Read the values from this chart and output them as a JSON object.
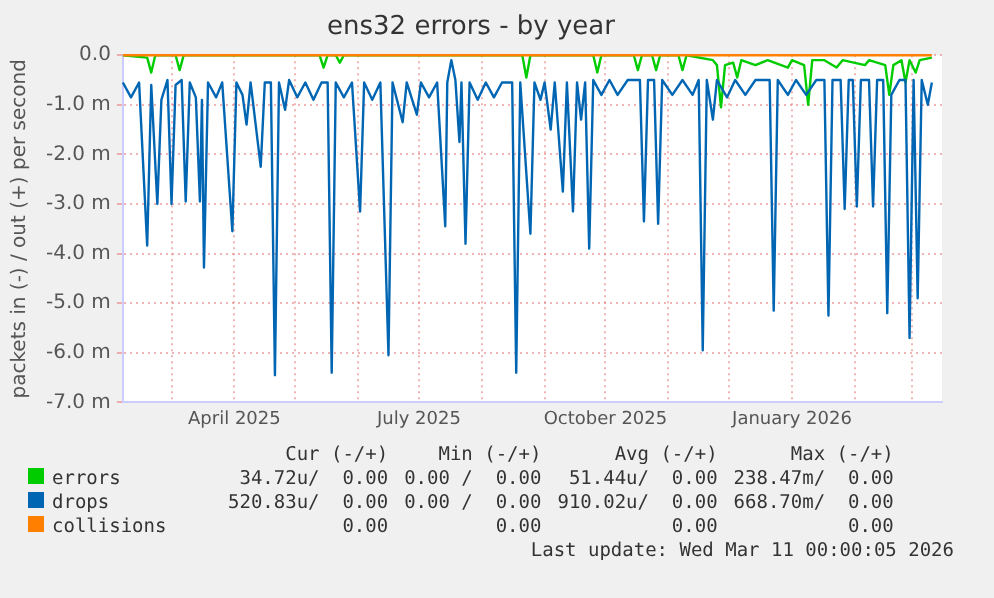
{
  "chart_data": {
    "type": "line",
    "title": "ens32 errors - by year",
    "ylabel": "packets in (-) / out (+) per second",
    "xlim": [
      "2025-02-05",
      "2026-03-16"
    ],
    "ylim": [
      -7,
      0
    ],
    "xticks": [
      {
        "value": "2025-03-01",
        "label": null
      },
      {
        "value": "2025-04-01",
        "label": "April 2025"
      },
      {
        "value": "2025-05-01",
        "label": null
      },
      {
        "value": "2025-06-01",
        "label": null
      },
      {
        "value": "2025-07-01",
        "label": "July 2025"
      },
      {
        "value": "2025-08-01",
        "label": null
      },
      {
        "value": "2025-09-01",
        "label": null
      },
      {
        "value": "2025-10-01",
        "label": "October 2025"
      },
      {
        "value": "2025-11-01",
        "label": null
      },
      {
        "value": "2025-12-01",
        "label": null
      },
      {
        "value": "2026-01-01",
        "label": "January 2026"
      },
      {
        "value": "2026-02-01",
        "label": null
      },
      {
        "value": "2026-03-01",
        "label": null
      }
    ],
    "yticks": [
      {
        "value": 0,
        "label": "0.0"
      },
      {
        "value": -1,
        "label": "-1.0 m"
      },
      {
        "value": -2,
        "label": "-2.0 m"
      },
      {
        "value": -3,
        "label": "-3.0 m"
      },
      {
        "value": -4,
        "label": "-4.0 m"
      },
      {
        "value": -5,
        "label": "-5.0 m"
      },
      {
        "value": -6,
        "label": "-6.0 m"
      },
      {
        "value": -7,
        "label": "-7.0 m"
      }
    ],
    "grid": true,
    "legend": "bottom",
    "marker": "none",
    "line_style": "solid",
    "series": [
      {
        "name": "errors",
        "color": "#00cc00",
        "x": [
          "2025-02-05",
          "2025-02-17",
          "2025-02-19",
          "2025-02-21",
          "2025-03-03",
          "2025-03-05",
          "2025-03-07",
          "2025-05-13",
          "2025-05-15",
          "2025-05-17",
          "2025-05-21",
          "2025-05-23",
          "2025-05-25",
          "2025-08-21",
          "2025-08-23",
          "2025-08-25",
          "2025-09-25",
          "2025-09-27",
          "2025-09-29",
          "2025-10-15",
          "2025-10-17",
          "2025-10-19",
          "2025-10-24",
          "2025-10-26",
          "2025-10-28",
          "2025-11-06",
          "2025-11-08",
          "2025-11-10",
          "2025-11-23",
          "2025-11-25",
          "2025-11-27",
          "2025-11-29",
          "2025-12-03",
          "2025-12-05",
          "2025-12-07",
          "2025-12-14",
          "2025-12-20",
          "2025-12-30",
          "2026-01-01",
          "2026-01-07",
          "2026-01-09",
          "2026-01-11",
          "2026-01-17",
          "2026-01-23",
          "2026-01-26",
          "2026-02-06",
          "2026-02-08",
          "2026-02-16",
          "2026-02-18",
          "2026-02-20",
          "2026-02-24",
          "2026-02-26",
          "2026-02-28",
          "2026-03-03",
          "2026-03-05",
          "2026-03-11"
        ],
        "values": [
          0,
          -0.05,
          -0.35,
          0,
          0,
          -0.3,
          0,
          0,
          -0.25,
          0,
          0,
          -0.15,
          0,
          0,
          -0.45,
          0,
          0,
          -0.35,
          0,
          0,
          -0.3,
          0,
          0,
          -0.3,
          0,
          0,
          -0.3,
          0,
          -0.1,
          -0.2,
          -1.05,
          -0.2,
          -0.15,
          -0.45,
          -0.1,
          -0.2,
          -0.1,
          -0.25,
          -0.1,
          -0.2,
          -1.0,
          -0.1,
          -0.1,
          -0.25,
          -0.1,
          -0.2,
          -0.1,
          -0.2,
          -0.8,
          -0.2,
          -0.1,
          -0.55,
          -0.1,
          -0.35,
          -0.1,
          -0.05
        ]
      },
      {
        "name": "drops",
        "color": "#0066b3",
        "x": [
          "2025-02-05",
          "2025-02-09",
          "2025-02-13",
          "2025-02-17",
          "2025-02-19",
          "2025-02-22",
          "2025-02-24",
          "2025-02-27",
          "2025-03-01",
          "2025-03-03",
          "2025-03-06",
          "2025-03-08",
          "2025-03-10",
          "2025-03-13",
          "2025-03-15",
          "2025-03-16",
          "2025-03-17",
          "2025-03-19",
          "2025-03-23",
          "2025-03-26",
          "2025-03-31",
          "2025-04-02",
          "2025-04-05",
          "2025-04-07",
          "2025-04-09",
          "2025-04-14",
          "2025-04-16",
          "2025-04-19",
          "2025-04-21",
          "2025-04-23",
          "2025-04-26",
          "2025-04-28",
          "2025-05-02",
          "2025-05-06",
          "2025-05-10",
          "2025-05-14",
          "2025-05-17",
          "2025-05-19",
          "2025-05-21",
          "2025-05-25",
          "2025-05-29",
          "2025-06-02",
          "2025-06-04",
          "2025-06-08",
          "2025-06-12",
          "2025-06-16",
          "2025-06-18",
          "2025-06-23",
          "2025-06-25",
          "2025-06-30",
          "2025-07-02",
          "2025-07-06",
          "2025-07-10",
          "2025-07-14",
          "2025-07-15",
          "2025-07-17",
          "2025-07-19",
          "2025-07-21",
          "2025-07-22",
          "2025-07-24",
          "2025-07-26",
          "2025-07-30",
          "2025-08-03",
          "2025-08-07",
          "2025-08-11",
          "2025-08-16",
          "2025-08-18",
          "2025-08-20",
          "2025-08-25",
          "2025-08-27",
          "2025-08-30",
          "2025-09-01",
          "2025-09-04",
          "2025-09-06",
          "2025-09-10",
          "2025-09-12",
          "2025-09-15",
          "2025-09-17",
          "2025-09-19",
          "2025-09-21",
          "2025-09-23",
          "2025-09-25",
          "2025-09-29",
          "2025-10-03",
          "2025-10-07",
          "2025-10-12",
          "2025-10-18",
          "2025-10-20",
          "2025-10-22",
          "2025-10-25",
          "2025-10-27",
          "2025-10-29",
          "2025-11-03",
          "2025-11-08",
          "2025-11-13",
          "2025-11-16",
          "2025-11-18",
          "2025-11-20",
          "2025-11-23",
          "2025-11-25",
          "2025-11-30",
          "2025-12-04",
          "2025-12-09",
          "2025-12-14",
          "2025-12-21",
          "2025-12-23",
          "2025-12-25",
          "2025-12-30",
          "2026-01-03",
          "2026-01-08",
          "2026-01-13",
          "2026-01-17",
          "2026-01-19",
          "2026-01-21",
          "2026-01-25",
          "2026-01-27",
          "2026-01-29",
          "2026-01-31",
          "2026-02-02",
          "2026-02-04",
          "2026-02-08",
          "2026-02-10",
          "2026-02-12",
          "2026-02-15",
          "2026-02-17",
          "2026-02-19",
          "2026-02-23",
          "2026-02-26",
          "2026-02-28",
          "2026-03-02",
          "2026-03-04",
          "2026-03-06",
          "2026-03-09",
          "2026-03-11"
        ],
        "values": [
          -0.55,
          -0.85,
          -0.55,
          -3.84,
          -0.6,
          -3.0,
          -0.9,
          -0.5,
          -3.0,
          -0.6,
          -0.5,
          -2.95,
          -0.55,
          -0.85,
          -2.95,
          -0.9,
          -4.28,
          -0.55,
          -0.85,
          -0.55,
          -3.55,
          -0.55,
          -0.8,
          -1.4,
          -0.55,
          -2.25,
          -0.55,
          -0.55,
          -6.45,
          -0.55,
          -1.1,
          -0.5,
          -0.85,
          -0.55,
          -0.9,
          -0.55,
          -0.55,
          -6.4,
          -0.55,
          -0.85,
          -0.55,
          -3.15,
          -0.55,
          -0.9,
          -0.55,
          -6.05,
          -0.55,
          -1.35,
          -0.55,
          -1.2,
          -0.55,
          -0.85,
          -0.55,
          -3.45,
          -0.55,
          -0.1,
          -0.5,
          -1.75,
          -0.55,
          -3.8,
          -0.55,
          -0.9,
          -0.55,
          -0.85,
          -0.55,
          -0.55,
          -6.4,
          -0.55,
          -3.6,
          -0.55,
          -0.9,
          -0.55,
          -1.5,
          -0.55,
          -2.75,
          -0.55,
          -3.15,
          -0.55,
          -1.3,
          -0.55,
          -3.9,
          -0.5,
          -0.8,
          -0.5,
          -0.8,
          -0.5,
          -0.5,
          -3.35,
          -0.5,
          -0.5,
          -3.4,
          -0.5,
          -0.8,
          -0.5,
          -0.8,
          -0.5,
          -5.95,
          -0.5,
          -1.3,
          -0.5,
          -0.85,
          -0.5,
          -0.8,
          -0.5,
          -0.5,
          -5.15,
          -0.5,
          -0.8,
          -0.5,
          -0.8,
          -0.5,
          -0.5,
          -5.25,
          -0.5,
          -0.5,
          -3.1,
          -0.5,
          -0.5,
          -3.05,
          -0.5,
          -0.5,
          -3.05,
          -0.5,
          -0.5,
          -5.2,
          -0.8,
          -0.5,
          -0.5,
          -5.7,
          -0.5,
          -4.9,
          -0.5,
          -1.0,
          -0.55
        ]
      },
      {
        "name": "collisions",
        "color": "#ff8000",
        "x": [
          "2025-02-05",
          "2026-03-11"
        ],
        "values": [
          0,
          0
        ]
      }
    ],
    "annotations": [
      "Cur (-/+)",
      "Min (-/+)",
      "Avg (-/+)",
      "Max (-/+)",
      "34.72u/  0.00",
      "0.00 /  0.00",
      "51.44u/  0.00",
      "238.47m/  0.00",
      "520.83u/  0.00",
      "0.00 /  0.00",
      "910.02u/  0.00",
      "668.70m/  0.00",
      "0.00",
      "0.00",
      "0.00",
      "0.00",
      "Last update: Wed Mar 11 00:00:05 2026"
    ]
  }
}
